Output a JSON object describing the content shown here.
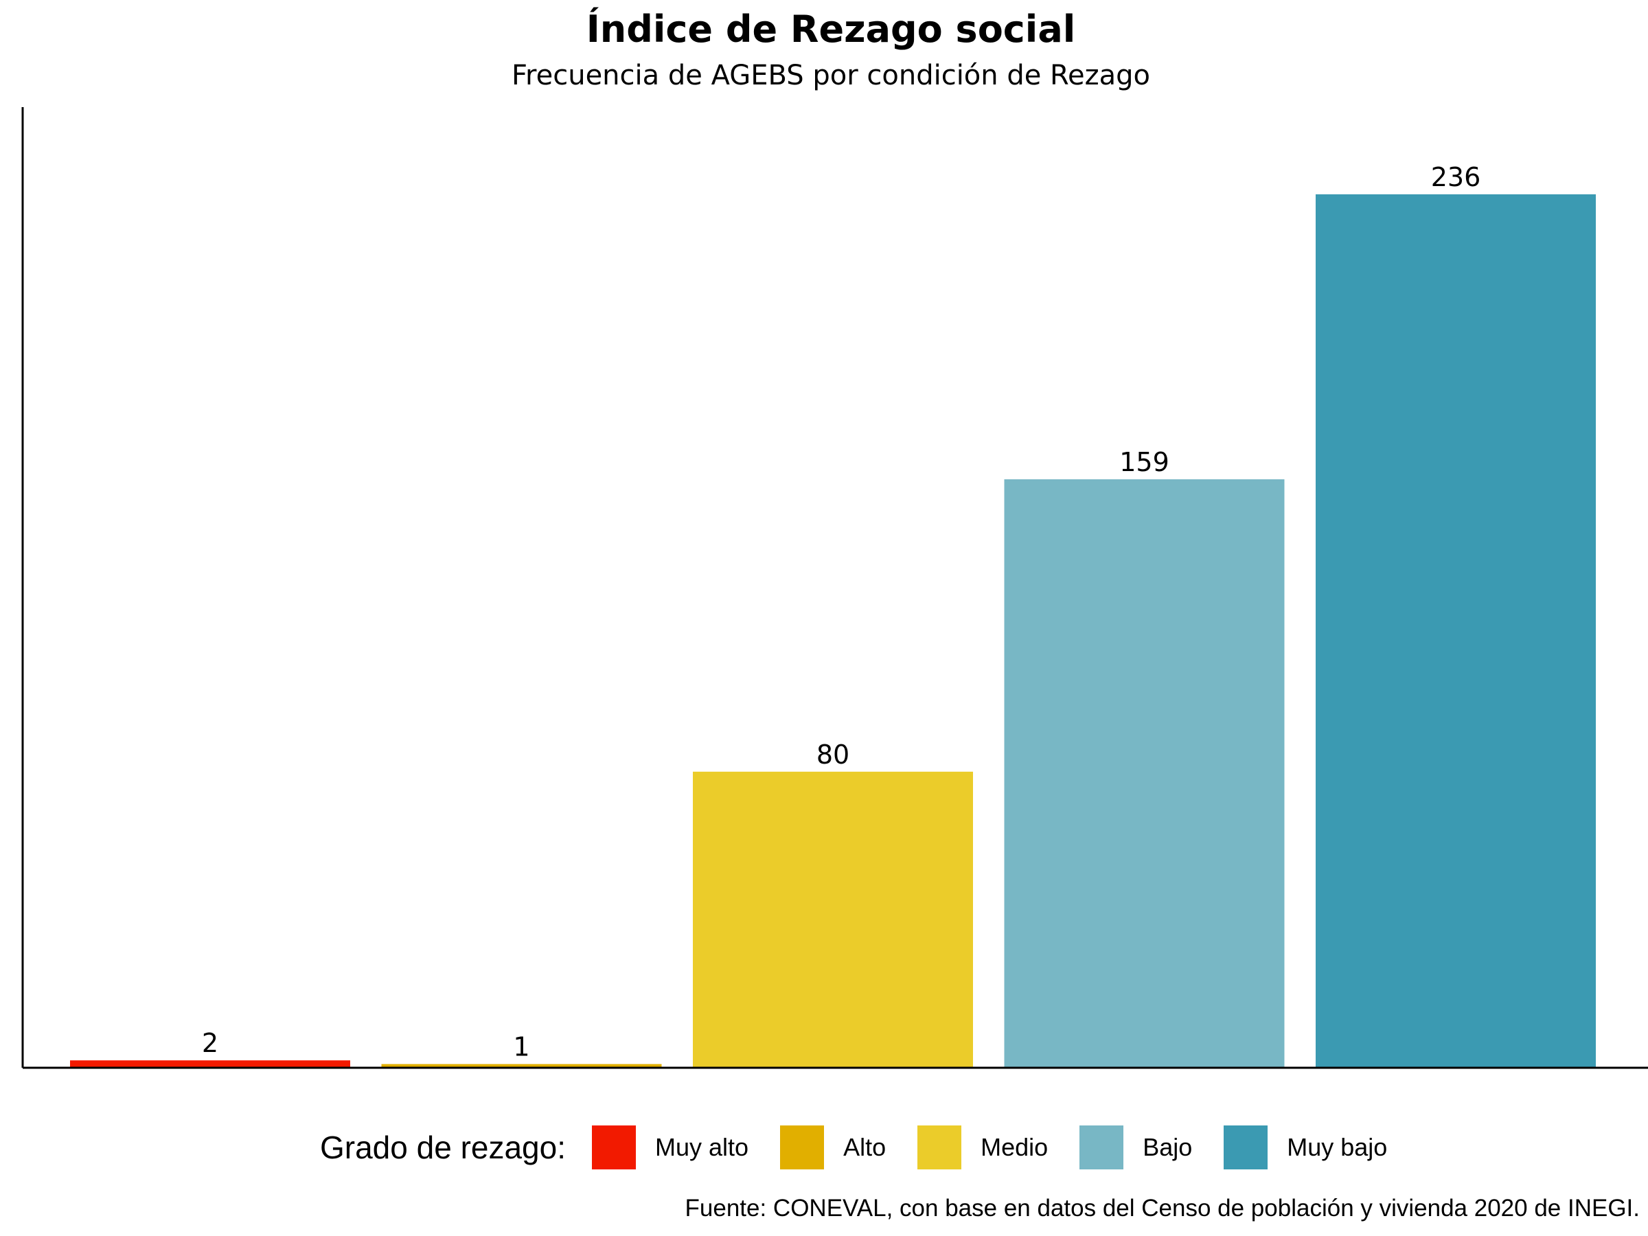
{
  "chart_data": {
    "type": "bar",
    "title": "Índice de Rezago social",
    "subtitle": "Frecuencia de AGEBS por condición de Rezago",
    "xlabel": "",
    "ylabel": "",
    "categories": [
      "Muy alto",
      "Alto",
      "Medio",
      "Bajo",
      "Muy bajo"
    ],
    "values": [
      2,
      1,
      80,
      159,
      236
    ],
    "colors": [
      "#F21A00",
      "#E1AF00",
      "#EBCC2A",
      "#78B7C5",
      "#3B9AB2"
    ],
    "ylim": [
      0,
      260
    ],
    "grid": false,
    "show_axis_ticks": false,
    "data_labels": true,
    "legend": {
      "title": "Grado de rezago:",
      "position": "bottom",
      "entries": [
        "Muy alto",
        "Alto",
        "Medio",
        "Bajo",
        "Muy bajo"
      ]
    },
    "caption": "Fuente: CONEVAL, con base en datos del Censo de población y vivienda 2020 de INEGI."
  }
}
